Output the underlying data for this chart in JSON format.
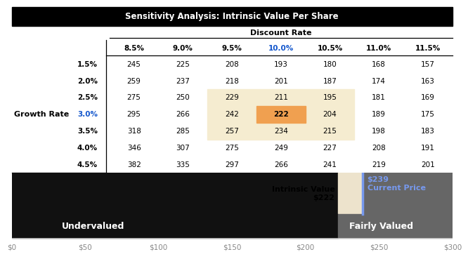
{
  "title": "Sensitivity Analysis: Intrinsic Value Per Share",
  "discount_rates": [
    "8.5%",
    "9.0%",
    "9.5%",
    "10.0%",
    "10.5%",
    "11.0%",
    "11.5%"
  ],
  "growth_rates": [
    "1.5%",
    "2.0%",
    "2.5%",
    "3.0%",
    "3.5%",
    "4.0%",
    "4.5%"
  ],
  "table_data": [
    [
      245,
      225,
      208,
      193,
      180,
      168,
      157
    ],
    [
      259,
      237,
      218,
      201,
      187,
      174,
      163
    ],
    [
      275,
      250,
      229,
      211,
      195,
      181,
      169
    ],
    [
      295,
      266,
      242,
      222,
      204,
      189,
      175
    ],
    [
      318,
      285,
      257,
      234,
      215,
      198,
      183
    ],
    [
      346,
      307,
      275,
      249,
      227,
      208,
      191
    ],
    [
      382,
      335,
      297,
      266,
      241,
      219,
      201
    ]
  ],
  "highlight_row": 3,
  "highlight_col": 3,
  "highlight_range_cols": [
    2,
    3,
    4
  ],
  "highlight_range_rows": [
    2,
    3,
    4
  ],
  "intrinsic_value": 222,
  "current_price": 239,
  "xmin": 0,
  "xmax": 300,
  "bar_bg_dark": "#111111",
  "bar_bg_light": "#ede3cc",
  "bar_bg_gray": "#666666",
  "undervalued_label": "Undervalued",
  "fairly_valued_label": "Fairly Valued",
  "current_price_label": "$239\nCurrent Price",
  "intrinsic_value_label": "Intrinsic Value\n$222",
  "highlight_cell_color": "#f0a050",
  "highlight_region_color": "#f5ecd0",
  "highlight_text_color": "#1155cc",
  "current_price_line_color": "#7799ee",
  "axis_tick_color": "#888888"
}
